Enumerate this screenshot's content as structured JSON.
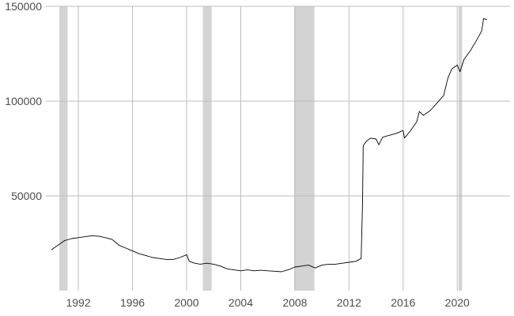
{
  "chart_data": {
    "type": "line",
    "title": "",
    "xlabel": "",
    "ylabel": "",
    "xlim": [
      1989.6,
      2023.9
    ],
    "ylim": [
      0,
      150000
    ],
    "x_ticks": [
      1992,
      1996,
      2000,
      2004,
      2008,
      2012,
      2016,
      2020
    ],
    "x_tick_labels": [
      "1992",
      "1996",
      "2000",
      "2004",
      "2008",
      "2012",
      "2016",
      "2020"
    ],
    "y_ticks": [
      50000,
      100000,
      150000
    ],
    "y_tick_labels": [
      "50000",
      "100000",
      "150000"
    ],
    "grid": true,
    "recession_shading": [
      {
        "start": 1990.6,
        "end": 1991.2
      },
      {
        "start": 2001.2,
        "end": 2001.85
      },
      {
        "start": 2007.95,
        "end": 2009.45
      },
      {
        "start": 2020.1,
        "end": 2020.35
      }
    ],
    "series": [
      {
        "color": "#000000",
        "points": [
          [
            1990.0,
            21500
          ],
          [
            1990.5,
            24000
          ],
          [
            1991.0,
            26500
          ],
          [
            1991.5,
            27500
          ],
          [
            1992.0,
            28000
          ],
          [
            1992.5,
            28500
          ],
          [
            1993.0,
            29000
          ],
          [
            1993.5,
            28800
          ],
          [
            1994.0,
            28000
          ],
          [
            1994.5,
            27000
          ],
          [
            1995.0,
            24000
          ],
          [
            1995.5,
            22500
          ],
          [
            1996.0,
            21000
          ],
          [
            1996.5,
            19500
          ],
          [
            1997.0,
            18500
          ],
          [
            1997.5,
            17500
          ],
          [
            1998.0,
            17000
          ],
          [
            1998.5,
            16500
          ],
          [
            1999.0,
            16500
          ],
          [
            1999.5,
            17500
          ],
          [
            2000.0,
            19000
          ],
          [
            2000.2,
            15500
          ],
          [
            2000.6,
            14500
          ],
          [
            2001.0,
            14000
          ],
          [
            2001.5,
            14500
          ],
          [
            2002.0,
            14000
          ],
          [
            2002.5,
            13000
          ],
          [
            2003.0,
            11500
          ],
          [
            2003.5,
            11000
          ],
          [
            2004.0,
            10500
          ],
          [
            2004.5,
            11000
          ],
          [
            2005.0,
            10500
          ],
          [
            2005.5,
            10800
          ],
          [
            2006.0,
            10500
          ],
          [
            2006.5,
            10300
          ],
          [
            2007.0,
            10000
          ],
          [
            2007.5,
            11000
          ],
          [
            2008.0,
            12500
          ],
          [
            2008.5,
            13000
          ],
          [
            2009.0,
            13500
          ],
          [
            2009.5,
            12000
          ],
          [
            2010.0,
            13500
          ],
          [
            2010.5,
            14000
          ],
          [
            2011.0,
            14000
          ],
          [
            2011.5,
            14500
          ],
          [
            2012.0,
            15000
          ],
          [
            2012.5,
            15500
          ],
          [
            2012.9,
            17000
          ],
          [
            2013.0,
            47000
          ],
          [
            2013.05,
            76500
          ],
          [
            2013.3,
            79000
          ],
          [
            2013.6,
            80500
          ],
          [
            2014.0,
            80000
          ],
          [
            2014.2,
            77000
          ],
          [
            2014.5,
            81000
          ],
          [
            2015.0,
            82000
          ],
          [
            2015.5,
            83000
          ],
          [
            2016.0,
            84500
          ],
          [
            2016.1,
            80500
          ],
          [
            2016.5,
            84000
          ],
          [
            2017.0,
            89000
          ],
          [
            2017.2,
            94500
          ],
          [
            2017.5,
            92500
          ],
          [
            2018.0,
            95000
          ],
          [
            2018.5,
            99000
          ],
          [
            2019.0,
            103000
          ],
          [
            2019.3,
            112000
          ],
          [
            2019.6,
            117000
          ],
          [
            2020.0,
            119000
          ],
          [
            2020.2,
            115500
          ],
          [
            2020.5,
            122000
          ],
          [
            2021.0,
            127000
          ],
          [
            2021.5,
            133000
          ],
          [
            2021.8,
            137000
          ],
          [
            2021.95,
            143500
          ],
          [
            2022.2,
            143000
          ]
        ]
      }
    ]
  }
}
